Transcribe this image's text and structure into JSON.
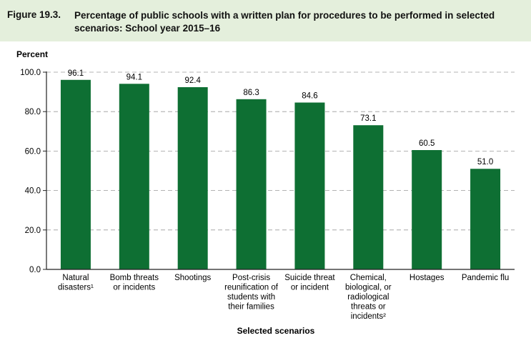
{
  "figure": {
    "number": "Figure 19.3.",
    "title": "Percentage of public schools with a written plan for procedures to be performed in selected scenarios: School year 2015–16"
  },
  "colors": {
    "bar": "#0e6f33",
    "title_band": "#e4efdc",
    "grid": "#9a9a9a"
  },
  "chart_data": {
    "type": "bar",
    "ylabel": "Percent",
    "xlabel": "Selected scenarios",
    "ylim": [
      0,
      100
    ],
    "yticks": [
      "0.0",
      "20.0",
      "40.0",
      "60.0",
      "80.0",
      "100.0"
    ],
    "grid": "dashed horizontal",
    "categories": [
      [
        "Natural",
        "disasters¹"
      ],
      [
        "Bomb threats",
        "or incidents"
      ],
      [
        "Shootings"
      ],
      [
        "Post-crisis",
        "reunification of",
        "students with",
        "their families"
      ],
      [
        "Suicide threat",
        "or incident"
      ],
      [
        "Chemical,",
        "biological, or",
        "radiological",
        "threats or",
        "incidents²"
      ],
      [
        "Hostages"
      ],
      [
        "Pandemic flu"
      ]
    ],
    "values": [
      96.1,
      94.1,
      92.4,
      86.3,
      84.6,
      73.1,
      60.5,
      51.0
    ],
    "value_labels": [
      "96.1",
      "94.1",
      "92.4",
      "86.3",
      "84.6",
      "73.1",
      "60.5",
      "51.0"
    ]
  }
}
